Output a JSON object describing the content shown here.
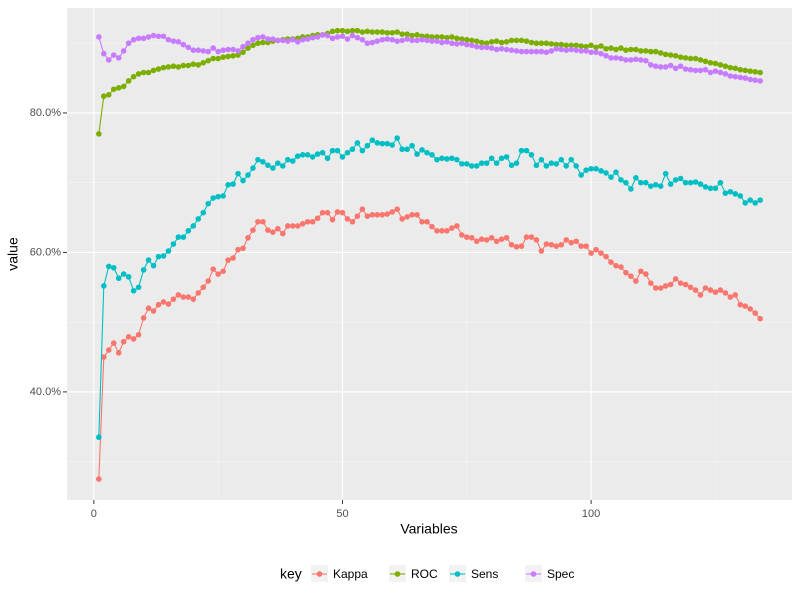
{
  "chart_data": {
    "type": "line",
    "x_label": "Variables",
    "y_label": "value",
    "legend_title": "key",
    "legend_position": "bottom",
    "grid": true,
    "x": [
      1,
      2,
      3,
      4,
      5,
      6,
      7,
      8,
      9,
      10,
      11,
      12,
      13,
      14,
      15,
      16,
      17,
      18,
      19,
      20,
      21,
      22,
      23,
      24,
      25,
      26,
      27,
      28,
      29,
      30,
      31,
      32,
      33,
      34,
      35,
      36,
      37,
      38,
      39,
      40,
      41,
      42,
      43,
      44,
      45,
      46,
      47,
      48,
      49,
      50,
      51,
      52,
      53,
      54,
      55,
      56,
      57,
      58,
      59,
      60,
      61,
      62,
      63,
      64,
      65,
      66,
      67,
      68,
      69,
      70,
      71,
      72,
      73,
      74,
      75,
      76,
      77,
      78,
      79,
      80,
      81,
      82,
      83,
      84,
      85,
      86,
      87,
      88,
      89,
      90,
      91,
      92,
      93,
      94,
      95,
      96,
      97,
      98,
      99,
      100,
      101,
      102,
      103,
      104,
      105,
      106,
      107,
      108,
      109,
      110,
      111,
      112,
      113,
      114,
      115,
      116,
      117,
      118,
      119,
      120,
      121,
      122,
      123,
      124,
      125,
      126,
      127,
      128,
      129,
      130,
      131,
      132,
      133,
      134
    ],
    "series": [
      {
        "name": "Kappa",
        "color": "#F8766D",
        "values": [
          0.275,
          0.45,
          0.46,
          0.47,
          0.456,
          0.472,
          0.479,
          0.476,
          0.482,
          0.506,
          0.52,
          0.516,
          0.525,
          0.529,
          0.526,
          0.533,
          0.539,
          0.536,
          0.536,
          0.533,
          0.542,
          0.55,
          0.559,
          0.576,
          0.569,
          0.573,
          0.589,
          0.592,
          0.604,
          0.606,
          0.621,
          0.632,
          0.644,
          0.644,
          0.632,
          0.629,
          0.634,
          0.627,
          0.638,
          0.638,
          0.638,
          0.641,
          0.644,
          0.644,
          0.649,
          0.657,
          0.657,
          0.647,
          0.658,
          0.657,
          0.648,
          0.644,
          0.652,
          0.662,
          0.652,
          0.654,
          0.654,
          0.654,
          0.655,
          0.658,
          0.662,
          0.648,
          0.651,
          0.654,
          0.654,
          0.644,
          0.644,
          0.637,
          0.631,
          0.631,
          0.631,
          0.635,
          0.638,
          0.625,
          0.622,
          0.621,
          0.616,
          0.619,
          0.618,
          0.621,
          0.616,
          0.619,
          0.621,
          0.611,
          0.608,
          0.609,
          0.622,
          0.622,
          0.618,
          0.602,
          0.612,
          0.611,
          0.609,
          0.611,
          0.618,
          0.614,
          0.616,
          0.609,
          0.609,
          0.599,
          0.604,
          0.599,
          0.594,
          0.586,
          0.581,
          0.579,
          0.571,
          0.566,
          0.559,
          0.573,
          0.569,
          0.556,
          0.549,
          0.549,
          0.552,
          0.554,
          0.562,
          0.556,
          0.554,
          0.55,
          0.546,
          0.539,
          0.549,
          0.546,
          0.543,
          0.546,
          0.542,
          0.536,
          0.539,
          0.525,
          0.523,
          0.519,
          0.513,
          0.505
        ]
      },
      {
        "name": "ROC",
        "color": "#7CAE00",
        "values": [
          0.77,
          0.824,
          0.826,
          0.834,
          0.836,
          0.838,
          0.846,
          0.852,
          0.856,
          0.858,
          0.858,
          0.861,
          0.863,
          0.865,
          0.866,
          0.867,
          0.866,
          0.868,
          0.868,
          0.87,
          0.869,
          0.872,
          0.875,
          0.878,
          0.878,
          0.88,
          0.881,
          0.882,
          0.883,
          0.887,
          0.893,
          0.897,
          0.9,
          0.901,
          0.901,
          0.903,
          0.904,
          0.905,
          0.906,
          0.906,
          0.907,
          0.909,
          0.909,
          0.911,
          0.912,
          0.912,
          0.914,
          0.917,
          0.918,
          0.918,
          0.917,
          0.918,
          0.918,
          0.916,
          0.917,
          0.916,
          0.916,
          0.916,
          0.915,
          0.915,
          0.916,
          0.913,
          0.913,
          0.911,
          0.912,
          0.91,
          0.91,
          0.909,
          0.909,
          0.909,
          0.908,
          0.909,
          0.907,
          0.906,
          0.905,
          0.904,
          0.903,
          0.901,
          0.9,
          0.902,
          0.903,
          0.901,
          0.902,
          0.904,
          0.904,
          0.904,
          0.903,
          0.901,
          0.9,
          0.9,
          0.9,
          0.899,
          0.898,
          0.898,
          0.897,
          0.897,
          0.897,
          0.896,
          0.895,
          0.897,
          0.894,
          0.896,
          0.892,
          0.893,
          0.891,
          0.893,
          0.89,
          0.891,
          0.891,
          0.889,
          0.889,
          0.888,
          0.888,
          0.886,
          0.884,
          0.883,
          0.882,
          0.88,
          0.879,
          0.878,
          0.878,
          0.876,
          0.874,
          0.872,
          0.871,
          0.869,
          0.867,
          0.865,
          0.864,
          0.862,
          0.861,
          0.86,
          0.859,
          0.858
        ]
      },
      {
        "name": "Sens",
        "color": "#00BFC4",
        "values": [
          0.335,
          0.552,
          0.58,
          0.578,
          0.563,
          0.569,
          0.565,
          0.545,
          0.55,
          0.575,
          0.589,
          0.581,
          0.594,
          0.595,
          0.602,
          0.612,
          0.622,
          0.622,
          0.631,
          0.638,
          0.648,
          0.657,
          0.67,
          0.678,
          0.68,
          0.681,
          0.697,
          0.698,
          0.713,
          0.703,
          0.711,
          0.721,
          0.733,
          0.73,
          0.725,
          0.721,
          0.728,
          0.724,
          0.733,
          0.731,
          0.738,
          0.74,
          0.74,
          0.737,
          0.741,
          0.743,
          0.735,
          0.746,
          0.746,
          0.737,
          0.743,
          0.748,
          0.757,
          0.746,
          0.753,
          0.761,
          0.757,
          0.756,
          0.756,
          0.754,
          0.764,
          0.748,
          0.748,
          0.753,
          0.741,
          0.747,
          0.743,
          0.74,
          0.733,
          0.735,
          0.734,
          0.735,
          0.733,
          0.727,
          0.727,
          0.724,
          0.724,
          0.728,
          0.728,
          0.735,
          0.728,
          0.735,
          0.737,
          0.725,
          0.728,
          0.746,
          0.746,
          0.74,
          0.725,
          0.733,
          0.724,
          0.728,
          0.727,
          0.733,
          0.724,
          0.733,
          0.724,
          0.711,
          0.718,
          0.72,
          0.72,
          0.717,
          0.714,
          0.708,
          0.715,
          0.704,
          0.7,
          0.691,
          0.707,
          0.7,
          0.7,
          0.695,
          0.697,
          0.695,
          0.713,
          0.698,
          0.704,
          0.706,
          0.7,
          0.7,
          0.701,
          0.698,
          0.694,
          0.692,
          0.692,
          0.7,
          0.685,
          0.687,
          0.684,
          0.681,
          0.671,
          0.675,
          0.671,
          0.675
        ]
      },
      {
        "name": "Spec",
        "color": "#C77CFF",
        "values": [
          0.909,
          0.885,
          0.876,
          0.883,
          0.879,
          0.889,
          0.9,
          0.905,
          0.907,
          0.907,
          0.909,
          0.911,
          0.91,
          0.91,
          0.905,
          0.903,
          0.902,
          0.898,
          0.894,
          0.89,
          0.89,
          0.889,
          0.888,
          0.893,
          0.888,
          0.89,
          0.891,
          0.891,
          0.889,
          0.895,
          0.9,
          0.905,
          0.908,
          0.909,
          0.906,
          0.906,
          0.904,
          0.904,
          0.903,
          0.905,
          0.902,
          0.905,
          0.906,
          0.908,
          0.909,
          0.912,
          0.911,
          0.907,
          0.909,
          0.91,
          0.906,
          0.911,
          0.908,
          0.905,
          0.9,
          0.901,
          0.903,
          0.905,
          0.906,
          0.905,
          0.903,
          0.904,
          0.906,
          0.904,
          0.904,
          0.905,
          0.904,
          0.903,
          0.903,
          0.901,
          0.902,
          0.9,
          0.899,
          0.9,
          0.898,
          0.897,
          0.895,
          0.894,
          0.894,
          0.893,
          0.891,
          0.892,
          0.891,
          0.89,
          0.889,
          0.888,
          0.888,
          0.888,
          0.888,
          0.888,
          0.887,
          0.889,
          0.892,
          0.891,
          0.89,
          0.891,
          0.89,
          0.889,
          0.889,
          0.887,
          0.887,
          0.885,
          0.882,
          0.879,
          0.879,
          0.878,
          0.876,
          0.876,
          0.877,
          0.876,
          0.875,
          0.869,
          0.867,
          0.866,
          0.866,
          0.868,
          0.864,
          0.867,
          0.863,
          0.862,
          0.861,
          0.861,
          0.862,
          0.858,
          0.86,
          0.858,
          0.856,
          0.853,
          0.852,
          0.851,
          0.85,
          0.848,
          0.847,
          0.846
        ]
      }
    ],
    "xlim": [
      -5.4,
      140.4
    ],
    "xticks": [
      0,
      50,
      100
    ],
    "x_minor_ticks": [
      25,
      75,
      125
    ],
    "ylim": [
      0.245,
      0.9505
    ],
    "yticks": [
      {
        "value": 0.4,
        "label": "40.0%"
      },
      {
        "value": 0.6,
        "label": "60.0%"
      },
      {
        "value": 0.8,
        "label": "80.0%"
      }
    ],
    "y_minor_ticks": [
      0.3,
      0.5,
      0.7,
      0.9
    ]
  }
}
